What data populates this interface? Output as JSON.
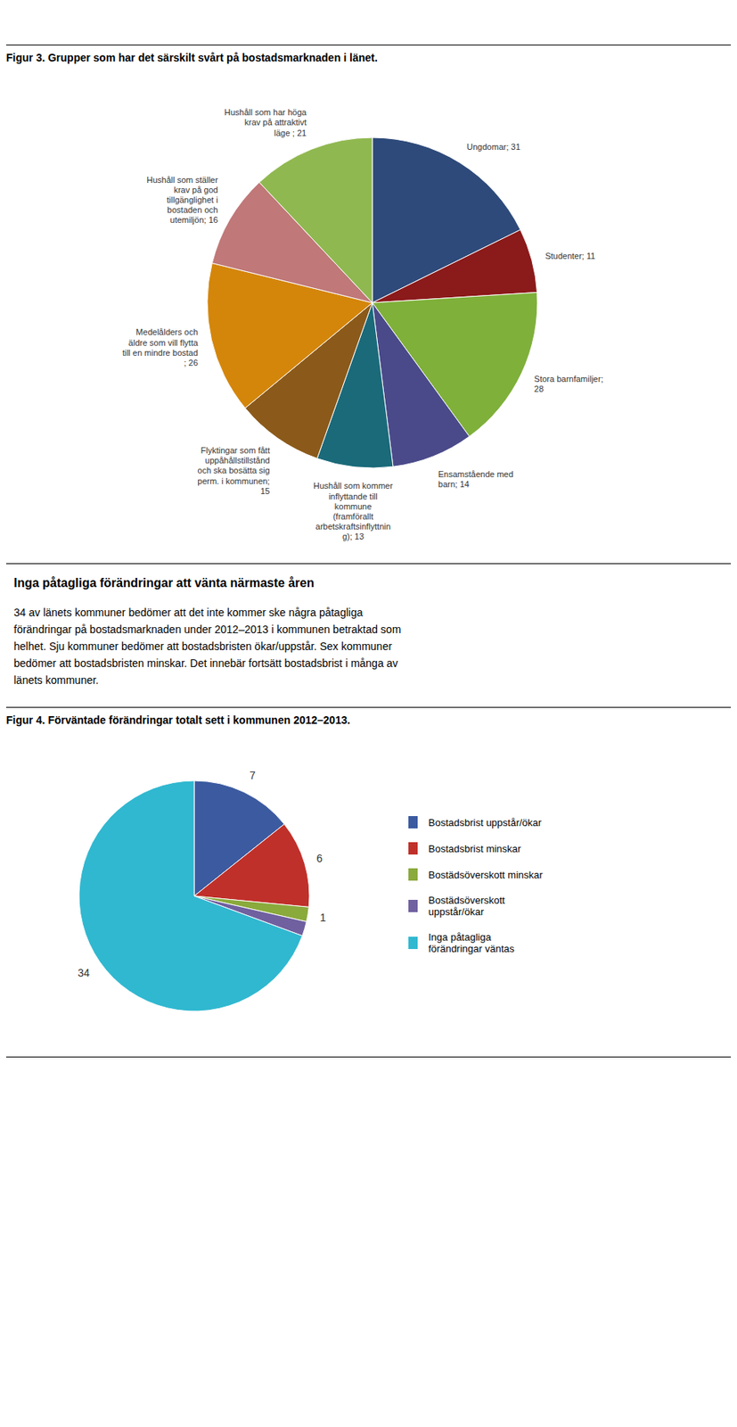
{
  "chart_data": [
    {
      "type": "pie",
      "title": "Figur 3. Grupper som har det särskilt svårt på bostadsmarknaden i länet.",
      "categories": [
        "Ungdomar; 31",
        "Studenter; 11",
        "Stora barnfamiljer;\n28",
        "Ensamstående med\nbarn; 14",
        "Hushåll som kommer\ninflyttande till\nkommune\n(framförallt\narbetskraftsinflyttnin\ng); 13",
        "Flyktingar som fått\nuppåhållstillstånd\noch ska bosätta sig\nperm. i kommunen;\n15",
        "Medelålders och\näldre som vill flytta\ntill en mindre bostad\n; 26",
        "Hushåll som ställer\nkrav på god\ntillgänglighet i\nbostaden och\nutemiljön; 16",
        "Hushåll som har höga\nkrav på attraktivt\nläge ; 21"
      ],
      "values": [
        31,
        11,
        28,
        14,
        13,
        15,
        26,
        16,
        21
      ],
      "colors": [
        "#2E4A7A",
        "#8B1A1A",
        "#7FB03A",
        "#4A4A8A",
        "#1A6A7A",
        "#8B5A1A",
        "#D4860A",
        "#C07878",
        "#90B850"
      ]
    },
    {
      "type": "pie",
      "title": "Figur 4. Förväntade förändringar totalt sett i kommunen 2012–2013.",
      "categories": [
        "Bostadsbrist uppstår/ökar",
        "Bostadsbrist minskar",
        "Bostädsöverskott minskar",
        "Bostädsöverskott\nuppstår/ökar",
        "Inga påtagliga\nförändringar väntas"
      ],
      "values": [
        7,
        6,
        1,
        1,
        34
      ],
      "value_labels": [
        "7",
        "6",
        "1",
        null,
        "34"
      ],
      "data_labels": true,
      "colors": [
        "#3B5AA0",
        "#C0302A",
        "#8AAA3C",
        "#7060A0",
        "#30B8D0"
      ],
      "legend": "right"
    }
  ],
  "annotations": [
    "Inga påtagliga förändringar att vänta närmaste åren",
    "34 av länets kommuner bedömer att det inte kommer ske några påtagliga",
    "förändringar på bostadsmarknaden under 2012–2013 i kommunen betraktad som",
    "helhet. Sju kommuner bedömer att bostadsbristen ökar/uppstår. Sex kommuner",
    "bedömer att bostadsbristen minskar. Det innebär fortsätt bostadsbrist i många av",
    "länets kommuner."
  ]
}
